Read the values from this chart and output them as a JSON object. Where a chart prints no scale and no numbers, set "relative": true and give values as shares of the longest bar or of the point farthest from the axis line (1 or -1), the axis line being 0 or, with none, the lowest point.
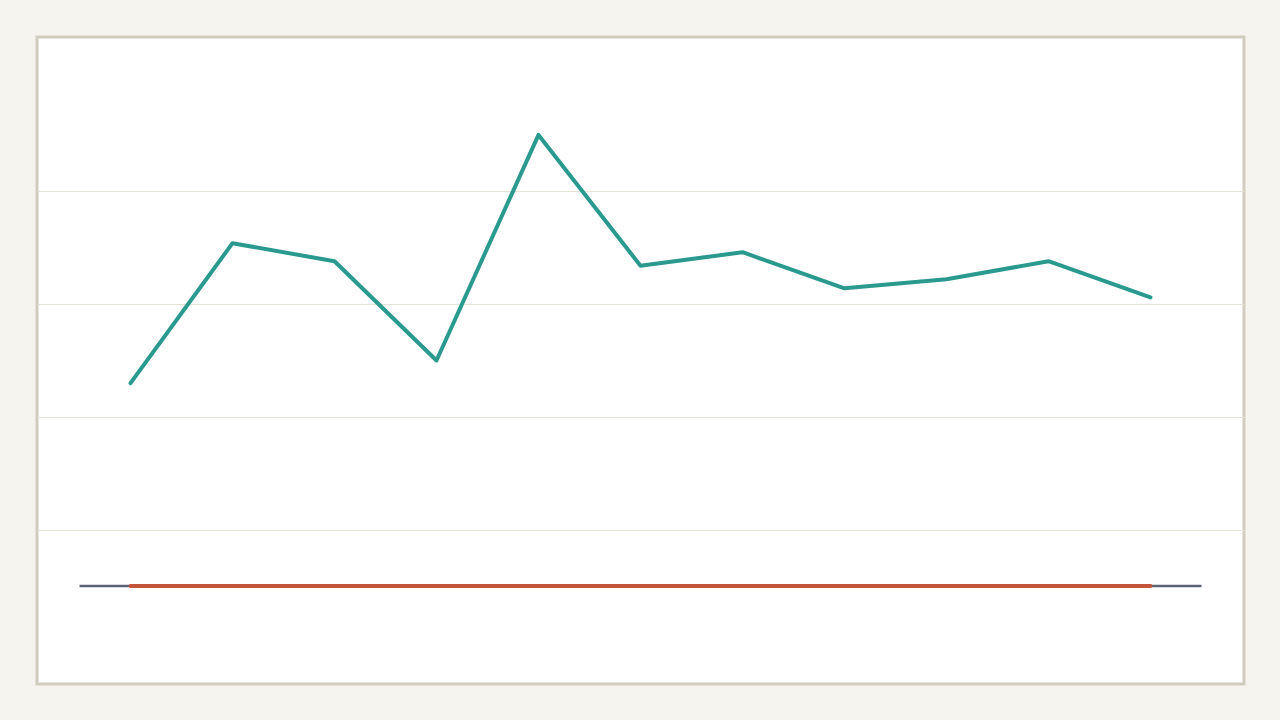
{
  "chart_data": {
    "type": "line",
    "relative": true,
    "categories": [
      null,
      null,
      null,
      null,
      null,
      null,
      null,
      null,
      null,
      null,
      null
    ],
    "series": [
      {
        "color": "#2a9a8f",
        "values": [
          0.45,
          0.76,
          0.72,
          0.5,
          1,
          0.71,
          0.74,
          0.66,
          0.68,
          0.72,
          0.64
        ]
      },
      {
        "color": "#c4553c",
        "values": [
          0,
          0,
          0,
          0,
          0,
          0,
          0,
          0,
          0,
          0,
          0
        ]
      }
    ],
    "grid": "y",
    "legend": false,
    "marker": "none",
    "line_style": "solid"
  }
}
